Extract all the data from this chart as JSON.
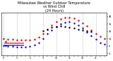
{
  "title": "Milwaukee Weather Outdoor Temperature\nvs Wind Chill\n(24 Hours)",
  "title_fontsize": 3.5,
  "background_color": "#ffffff",
  "grid_color": "#999999",
  "hours": [
    0,
    1,
    2,
    3,
    4,
    5,
    6,
    7,
    8,
    9,
    10,
    11,
    12,
    13,
    14,
    15,
    16,
    17,
    18,
    19,
    20,
    21,
    22,
    23
  ],
  "temp": [
    15,
    14,
    14,
    13,
    13,
    13,
    13,
    14,
    17,
    22,
    28,
    33,
    38,
    42,
    44,
    44,
    43,
    40,
    36,
    32,
    27,
    22,
    18,
    15
  ],
  "wind_chill": [
    6,
    5,
    5,
    4,
    4,
    4,
    5,
    7,
    10,
    15,
    22,
    27,
    31,
    35,
    37,
    38,
    36,
    33,
    29,
    24,
    19,
    14,
    10,
    8
  ],
  "dew_point": [
    null,
    null,
    null,
    null,
    null,
    null,
    null,
    null,
    null,
    26,
    28,
    30,
    31,
    32,
    31,
    30,
    29,
    28,
    27,
    26,
    25,
    null,
    null,
    null
  ],
  "temp_color": "#cc0000",
  "wind_chill_color": "#0000cc",
  "dew_point_color": "#000000",
  "ylim": [
    -7,
    50
  ],
  "yticks": [
    -5,
    5,
    15,
    25,
    35,
    45
  ],
  "ytick_labels": [
    "-5",
    "5",
    "15",
    "25",
    "35",
    "45"
  ],
  "marker_size": 1.5,
  "vgrid_hours": [
    0,
    3,
    6,
    9,
    12,
    15,
    18,
    21
  ],
  "hline_xstart": 0.2,
  "hline_xend": 4.5,
  "hline_y_temp": 10,
  "hline_y_wc": 7,
  "hline_color_temp": "#cc0000",
  "hline_color_wc": "#0000cc",
  "hline_dot_x": 0.5,
  "xlim": [
    -0.5,
    23.5
  ]
}
